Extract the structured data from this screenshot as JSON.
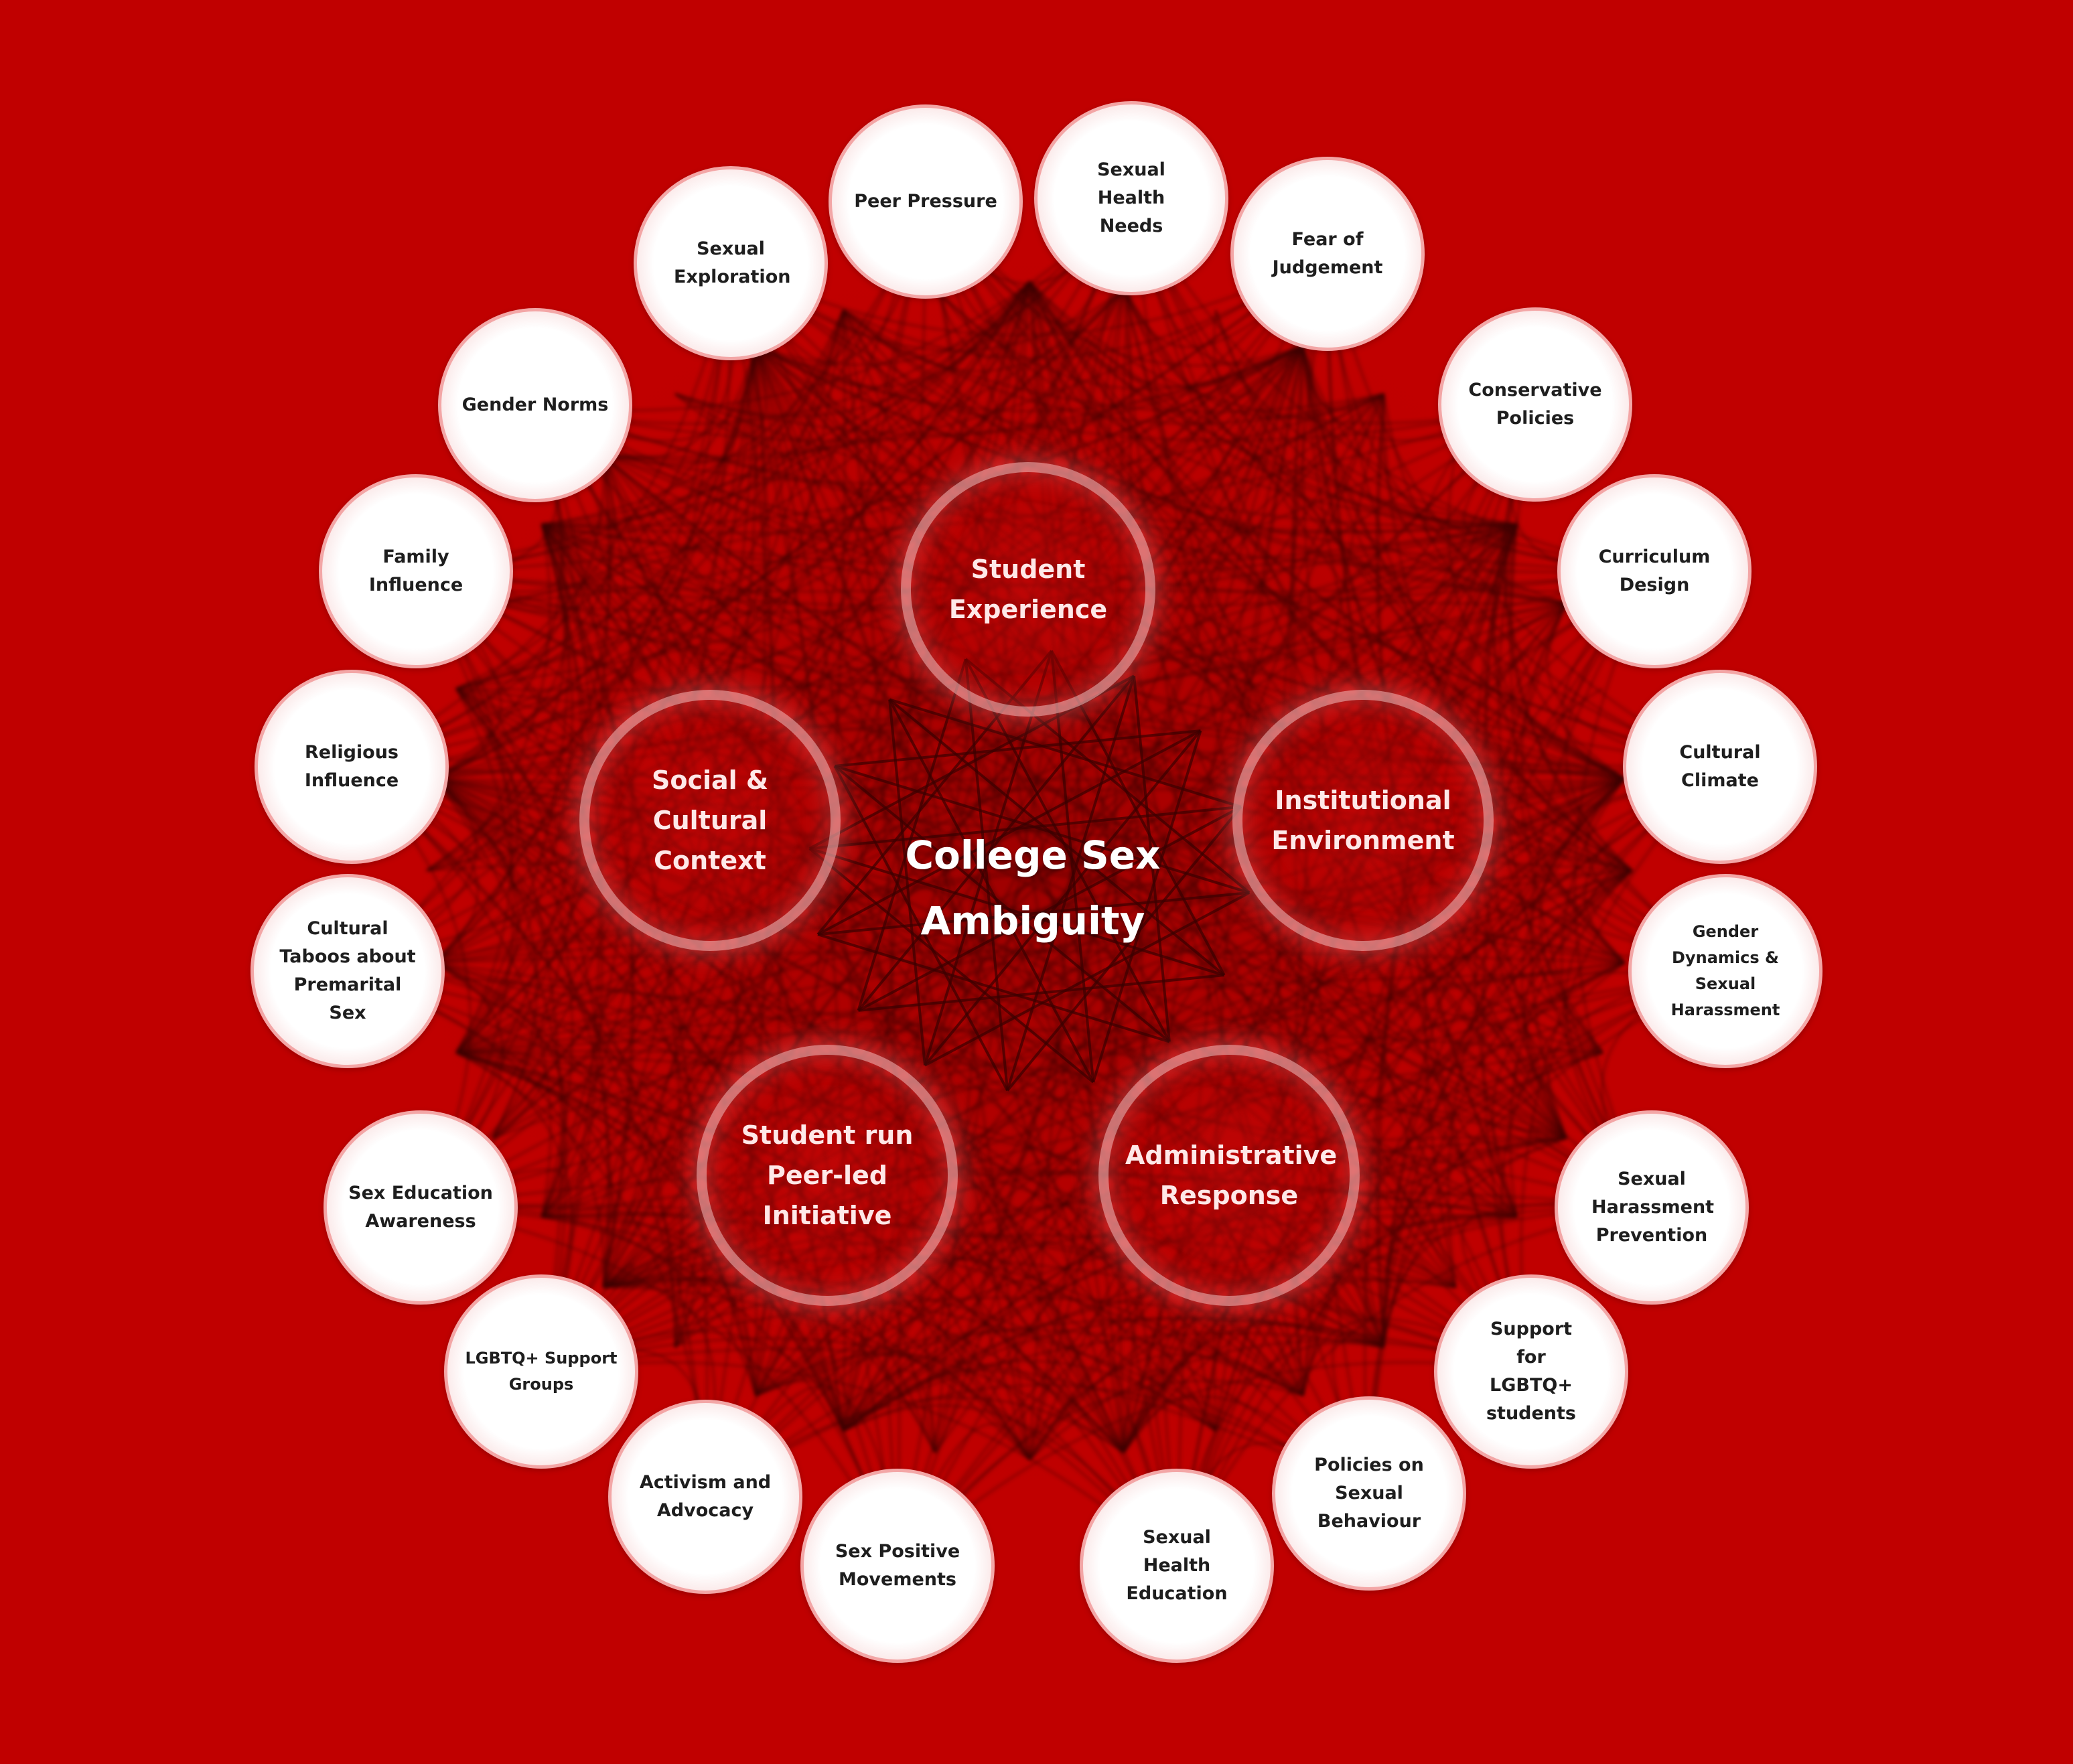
{
  "diagram": {
    "center": [
      "College Sex",
      "Ambiguity"
    ],
    "colors": {
      "background": "#c00000",
      "web_lines": "#3a0000",
      "leaf_fill": "#ffffff",
      "leaf_border": "#f3a6a6",
      "hub_ring": "#ffd2d2"
    },
    "hubs": [
      {
        "label": "Student Experience"
      },
      {
        "label": "Social & Cultural Context"
      },
      {
        "label": "Institutional Environment"
      },
      {
        "label": "Student run Peer-led Initiative"
      },
      {
        "label": "Administrative Response"
      }
    ],
    "nodes": [
      {
        "label": "Peer Pressure"
      },
      {
        "label": "Sexual Health Needs"
      },
      {
        "label": "Fear of Judgement"
      },
      {
        "label": "Sexual Exploration"
      },
      {
        "label": "Gender Norms"
      },
      {
        "label": "Conservative Policies"
      },
      {
        "label": "Family Influence"
      },
      {
        "label": "Curriculum Design"
      },
      {
        "label": "Religious Influence"
      },
      {
        "label": "Cultural Climate"
      },
      {
        "label": "Cultural Taboos about Premarital Sex"
      },
      {
        "label": "Gender Dynamics & Sexual Harassment"
      },
      {
        "label": "Sex Education Awareness"
      },
      {
        "label": "Sexual Harassment Prevention"
      },
      {
        "label": "LGBTQ+ Support Groups"
      },
      {
        "label": "Support for LGBTQ+ students"
      },
      {
        "label": "Activism and Advocacy"
      },
      {
        "label": "Policies on Sexual Behaviour"
      },
      {
        "label": "Sex Positive Movements"
      },
      {
        "label": "Sexual Health Education"
      }
    ]
  }
}
